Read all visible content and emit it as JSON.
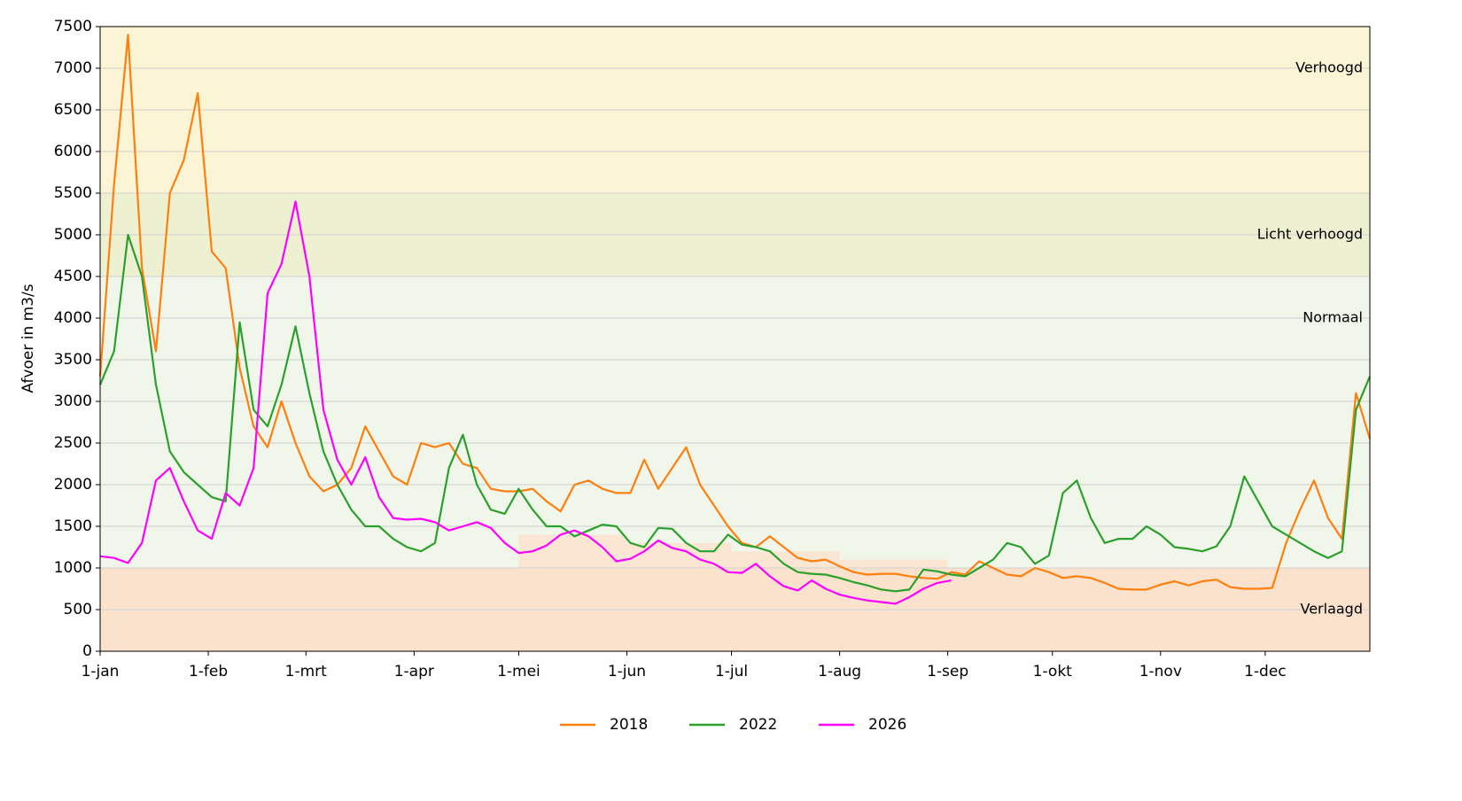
{
  "chart_data": {
    "type": "line",
    "y_label": "Afvoer in m3/s",
    "x": [
      0,
      4,
      8,
      12,
      16,
      20,
      24,
      28,
      32,
      36,
      40,
      44,
      48,
      52,
      56,
      60,
      64,
      68,
      72,
      76,
      80,
      84,
      88,
      92,
      96,
      100,
      104,
      108,
      112,
      116,
      120,
      124,
      128,
      132,
      136,
      140,
      144,
      148,
      152,
      156,
      160,
      164,
      168,
      172,
      176,
      180,
      184,
      188,
      192,
      196,
      200,
      204,
      208,
      212,
      216,
      220,
      224,
      228,
      232,
      236,
      240,
      244,
      248,
      252,
      256,
      260,
      264,
      268,
      272,
      276,
      280,
      284,
      288,
      292,
      296,
      300,
      304,
      308,
      312,
      316,
      320,
      324,
      328,
      332,
      336,
      340,
      344,
      348,
      352,
      356,
      360,
      364
    ],
    "xlim": [
      0,
      364
    ],
    "xticks": [
      {
        "value": 0,
        "label": "1-jan"
      },
      {
        "value": 31,
        "label": "1-feb"
      },
      {
        "value": 59,
        "label": "1-mrt"
      },
      {
        "value": 90,
        "label": "1-apr"
      },
      {
        "value": 120,
        "label": "1-mei"
      },
      {
        "value": 151,
        "label": "1-jun"
      },
      {
        "value": 181,
        "label": "1-jul"
      },
      {
        "value": 212,
        "label": "1-aug"
      },
      {
        "value": 243,
        "label": "1-sep"
      },
      {
        "value": 273,
        "label": "1-okt"
      },
      {
        "value": 304,
        "label": "1-nov"
      },
      {
        "value": 334,
        "label": "1-dec"
      }
    ],
    "ylim": [
      0,
      7500
    ],
    "yticks": [
      0,
      500,
      1000,
      1500,
      2000,
      2500,
      3000,
      3500,
      4000,
      4500,
      5000,
      5500,
      6000,
      6500,
      7000,
      7500
    ],
    "grid": true,
    "legend": "bottom",
    "bands": [
      {
        "label": "Verhoogd",
        "range": [
          5500,
          7500
        ],
        "color": "#fcf5d5"
      },
      {
        "label": "Licht verhoogd",
        "range": [
          4500,
          5500
        ],
        "color": "#eef0d2"
      },
      {
        "label": "Normaal",
        "range": [
          1000,
          4500
        ],
        "color": "#f1f6ea"
      },
      {
        "label": "Verlaagd",
        "range": [
          0,
          1000
        ],
        "color": "#fbe2cc"
      }
    ],
    "low_steps": [
      {
        "x": [
          120,
          151
        ],
        "top": 1400,
        "color": "#fbe6d4"
      },
      {
        "x": [
          151,
          181
        ],
        "top": 1300,
        "color": "#fbe6d4"
      },
      {
        "x": [
          181,
          212
        ],
        "top": 1200,
        "color": "#fbe6d4"
      },
      {
        "x": [
          212,
          243
        ],
        "top": 1100,
        "color": "#fbe6d4"
      }
    ],
    "series": [
      {
        "name": "2018",
        "color": "#ff7f0e",
        "values": [
          3300,
          5600,
          7400,
          4600,
          3600,
          5500,
          5900,
          6700,
          4800,
          4600,
          3400,
          2700,
          2450,
          3000,
          2500,
          2100,
          1920,
          2000,
          2200,
          2700,
          2400,
          2100,
          2000,
          2500,
          2450,
          2500,
          2250,
          2200,
          1950,
          1920,
          1920,
          1950,
          1800,
          1680,
          2000,
          2050,
          1950,
          1900,
          1900,
          2300,
          1950,
          2200,
          2450,
          2000,
          1750,
          1500,
          1300,
          1250,
          1380,
          1250,
          1120,
          1080,
          1100,
          1020,
          950,
          920,
          930,
          930,
          900,
          880,
          870,
          950,
          920,
          1080,
          1000,
          920,
          900,
          1000,
          950,
          880,
          900,
          880,
          820,
          750,
          740,
          740,
          800,
          840,
          790,
          840,
          860,
          770,
          750,
          750,
          760,
          1300,
          1700,
          2050,
          1600,
          1350,
          3100,
          2550
        ]
      },
      {
        "name": "2022",
        "color": "#2ca02c",
        "values": [
          3200,
          3600,
          5000,
          4500,
          3200,
          2400,
          2150,
          2000,
          1850,
          1800,
          3950,
          2900,
          2700,
          3200,
          3900,
          3100,
          2400,
          2000,
          1700,
          1500,
          1500,
          1350,
          1250,
          1200,
          1300,
          2200,
          2600,
          2000,
          1700,
          1650,
          1950,
          1700,
          1500,
          1500,
          1380,
          1450,
          1520,
          1500,
          1300,
          1250,
          1480,
          1470,
          1300,
          1200,
          1200,
          1400,
          1280,
          1250,
          1200,
          1050,
          950,
          930,
          920,
          880,
          830,
          790,
          740,
          720,
          740,
          980,
          960,
          920,
          900,
          1000,
          1100,
          1300,
          1250,
          1050,
          1150,
          1900,
          2050,
          1600,
          1300,
          1350,
          1350,
          1500,
          1400,
          1250,
          1230,
          1200,
          1260,
          1500,
          2100,
          1800,
          1500,
          1400,
          1300,
          1200,
          1120,
          1200,
          2900,
          3300
        ]
      },
      {
        "name": "2026",
        "color": "#ff00ff",
        "values": [
          1140,
          1120,
          1060,
          1300,
          2050,
          2200,
          1800,
          1450,
          1350,
          1900,
          1750,
          2200,
          4300,
          4650,
          5400,
          4500,
          2900,
          2300,
          2000,
          2330,
          1850,
          1600,
          1580,
          1590,
          1550,
          1450,
          1500,
          1550,
          1480,
          1300,
          1180,
          1200,
          1270,
          1400,
          1450,
          1380,
          1250,
          1080,
          1110,
          1200,
          1330,
          1240,
          1200,
          1100,
          1050,
          950,
          940,
          1050,
          900,
          780,
          730,
          850,
          750,
          680,
          640,
          610,
          590,
          570,
          650,
          750,
          820,
          850,
          null,
          null,
          null,
          null,
          null,
          null,
          null,
          null,
          null,
          null,
          null,
          null,
          null,
          null,
          null,
          null,
          null,
          null,
          null,
          null,
          null,
          null,
          null,
          null,
          null,
          null,
          null,
          null,
          null,
          null
        ]
      }
    ]
  }
}
